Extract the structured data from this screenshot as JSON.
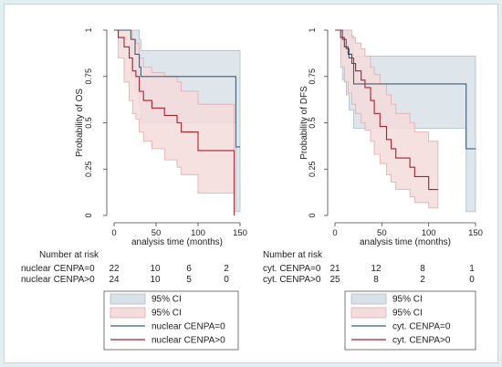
{
  "colors": {
    "ci_blue_fill": "#d8e0e8",
    "ci_blue_stroke": "#aebfcc",
    "ci_red_fill": "#f4dcdc",
    "ci_red_stroke": "#e3aaaa",
    "line_blue": "#3b5f7e",
    "line_red": "#a4232f",
    "background": "#e3eef3"
  },
  "chart_data": [
    {
      "type": "line",
      "subtype": "kaplan-meier",
      "title": "",
      "xlabel": "analysis time (months)",
      "ylabel": "Probability of OS",
      "xlim": [
        0,
        150
      ],
      "ylim": [
        0,
        1
      ],
      "xticks": [
        "0",
        "50",
        "100",
        "150"
      ],
      "yticks": [
        "0",
        "0.25",
        "0.5",
        "0.75",
        "1"
      ],
      "grid": false,
      "risk_table": {
        "title": "Number at risk",
        "rows": [
          {
            "label": "nuclear CENPA=0",
            "values": [
              "22",
              "10",
              "6",
              "2"
            ]
          },
          {
            "label": "nuclear CENPA>0",
            "values": [
              "24",
              "10",
              "5",
              "0"
            ]
          }
        ]
      },
      "legend": {
        "placement": "bottom",
        "items": [
          {
            "label": "95% CI",
            "kind": "ci",
            "series": 0
          },
          {
            "label": "95% CI",
            "kind": "ci",
            "series": 1
          },
          {
            "label": "nuclear CENPA=0",
            "kind": "line",
            "series": 0
          },
          {
            "label": "nuclear CENPA>0",
            "kind": "line",
            "series": 1
          }
        ]
      },
      "series": [
        {
          "name": "nuclear CENPA=0",
          "x": [
            0,
            20,
            25,
            30,
            32,
            145,
            150
          ],
          "y": [
            1,
            0.95,
            0.87,
            0.8,
            0.75,
            0.37,
            0.37
          ],
          "ci_upper": [
            1,
            1,
            1,
            0.95,
            0.89,
            0.89,
            0.89
          ],
          "ci_lower": [
            1,
            0.75,
            0.67,
            0.6,
            0.5,
            0.02,
            0.02
          ]
        },
        {
          "name": "nuclear CENPA>0",
          "x": [
            0,
            5,
            12,
            18,
            22,
            26,
            30,
            35,
            45,
            60,
            75,
            80,
            100,
            143
          ],
          "y": [
            1,
            0.96,
            0.91,
            0.85,
            0.78,
            0.75,
            0.67,
            0.62,
            0.58,
            0.54,
            0.5,
            0.45,
            0.35,
            0
          ],
          "ci_upper": [
            1,
            1,
            1,
            1,
            0.95,
            0.93,
            0.85,
            0.8,
            0.77,
            0.75,
            0.72,
            0.67,
            0.6,
            0.6
          ],
          "ci_lower": [
            1,
            0.85,
            0.72,
            0.62,
            0.55,
            0.52,
            0.45,
            0.4,
            0.36,
            0.3,
            0.26,
            0.22,
            0.12,
            0.12
          ]
        }
      ]
    },
    {
      "type": "line",
      "subtype": "kaplan-meier",
      "title": "",
      "xlabel": "analysis time (months)",
      "ylabel": "Probability of DFS",
      "xlim": [
        0,
        150
      ],
      "ylim": [
        0,
        1
      ],
      "xticks": [
        "0",
        "50",
        "100",
        "150"
      ],
      "yticks": [
        "0",
        "0.25",
        "0.5",
        "0.75",
        "1"
      ],
      "grid": false,
      "risk_table": {
        "title": "Number at risk",
        "rows": [
          {
            "label": "cyt. CENPA=0",
            "values": [
              "21",
              "12",
              "8",
              "1"
            ]
          },
          {
            "label": "cyt. CENPA>0",
            "values": [
              "25",
              "8",
              "2",
              "0"
            ]
          }
        ]
      },
      "legend": {
        "placement": "bottom",
        "items": [
          {
            "label": "95% CI",
            "kind": "ci",
            "series": 0
          },
          {
            "label": "95% CI",
            "kind": "ci",
            "series": 1
          },
          {
            "label": "cyt. CENPA=0",
            "kind": "line",
            "series": 0
          },
          {
            "label": "cyt. CENPA>0",
            "kind": "line",
            "series": 1
          }
        ]
      },
      "series": [
        {
          "name": "cyt. CENPA=0",
          "x": [
            0,
            8,
            12,
            15,
            20,
            140,
            150
          ],
          "y": [
            1,
            0.95,
            0.9,
            0.85,
            0.71,
            0.36,
            0.36
          ],
          "ci_upper": [
            1,
            1,
            1,
            0.97,
            0.86,
            0.86,
            0.86
          ],
          "ci_lower": [
            1,
            0.73,
            0.65,
            0.57,
            0.47,
            0.02,
            0.02
          ]
        },
        {
          "name": "cyt. CENPA>0",
          "x": [
            0,
            6,
            10,
            14,
            18,
            22,
            28,
            32,
            38,
            42,
            48,
            55,
            60,
            65,
            80,
            85,
            100,
            110
          ],
          "y": [
            1,
            0.96,
            0.91,
            0.87,
            0.82,
            0.78,
            0.73,
            0.69,
            0.62,
            0.55,
            0.48,
            0.41,
            0.36,
            0.31,
            0.26,
            0.21,
            0.14,
            0.14
          ],
          "ci_upper": [
            1,
            1,
            1,
            1,
            0.96,
            0.93,
            0.9,
            0.86,
            0.8,
            0.76,
            0.71,
            0.65,
            0.6,
            0.55,
            0.5,
            0.45,
            0.4,
            0.4
          ],
          "ci_lower": [
            1,
            0.8,
            0.72,
            0.66,
            0.6,
            0.55,
            0.5,
            0.46,
            0.4,
            0.33,
            0.28,
            0.22,
            0.18,
            0.14,
            0.1,
            0.07,
            0.04,
            0.04
          ]
        }
      ]
    }
  ]
}
